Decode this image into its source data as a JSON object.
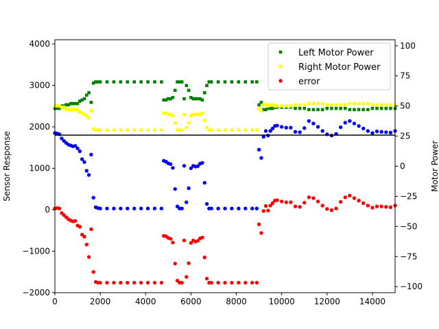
{
  "chart_data": {
    "type": "scatter",
    "title": "",
    "xlabel": "",
    "ylabel_left": "Sensor Response",
    "ylabel_right": "Motor Power",
    "xlim": [
      0,
      15000
    ],
    "ylim_left": [
      -2000,
      4100
    ],
    "ylim_right": [
      -105,
      105
    ],
    "x_ticks": [
      0,
      2000,
      4000,
      6000,
      8000,
      10000,
      12000,
      14000
    ],
    "y_ticks_left": [
      -2000,
      -1000,
      0,
      1000,
      2000,
      3000,
      4000
    ],
    "y_ticks_right": [
      -100,
      -75,
      -50,
      -25,
      0,
      25,
      50,
      75,
      100
    ],
    "reference_line": {
      "axis": "left",
      "y": 1800,
      "color": "#000000"
    },
    "grid": false,
    "legend_position": "top-right",
    "legend": [
      {
        "label": "Left Motor Power",
        "color": "#008000",
        "marker": "square"
      },
      {
        "label": "Right Motor Power",
        "color": "#ffff00",
        "marker": "square"
      },
      {
        "label": "error",
        "color": "#ff0000",
        "marker": "circle"
      }
    ],
    "series": [
      {
        "name": "",
        "axis": "left",
        "color": "#0000ff",
        "marker": "circle",
        "x": [
          0,
          100,
          200,
          300,
          400,
          500,
          600,
          700,
          800,
          900,
          1000,
          1100,
          1200,
          1300,
          1400,
          1500,
          1600,
          1700,
          1800,
          1900,
          2000,
          2300,
          2600,
          2900,
          3200,
          3500,
          3800,
          4100,
          4400,
          4700,
          4800,
          4900,
          5000,
          5100,
          5200,
          5300,
          5400,
          5500,
          5600,
          5700,
          5800,
          5900,
          6000,
          6100,
          6200,
          6300,
          6400,
          6500,
          6600,
          6700,
          6800,
          6900,
          7200,
          7500,
          7800,
          8100,
          8400,
          8700,
          8900,
          9000,
          9100,
          9200,
          9300,
          9400,
          9500,
          9600,
          9700,
          9800,
          10000,
          10200,
          10400,
          10600,
          10800,
          11000,
          11200,
          11400,
          11600,
          11800,
          12000,
          12200,
          12400,
          12600,
          12800,
          13000,
          13200,
          13400,
          13600,
          13800,
          14000,
          14200,
          14400,
          14600,
          14800,
          15000
        ],
        "y": [
          1850,
          1840,
          1820,
          1720,
          1660,
          1610,
          1570,
          1550,
          1530,
          1540,
          1480,
          1410,
          1220,
          1150,
          940,
          840,
          1330,
          290,
          60,
          40,
          30,
          30,
          30,
          30,
          30,
          30,
          30,
          30,
          30,
          30,
          1180,
          1160,
          1120,
          1100,
          1010,
          500,
          80,
          30,
          30,
          1060,
          180,
          520,
          1000,
          1060,
          1040,
          1050,
          1110,
          1130,
          650,
          140,
          30,
          30,
          30,
          30,
          30,
          30,
          30,
          30,
          30,
          1450,
          1250,
          1760,
          1900,
          1790,
          1900,
          1960,
          2020,
          2030,
          2000,
          1980,
          1980,
          1880,
          1870,
          1970,
          2140,
          2080,
          2000,
          1900,
          1820,
          1790,
          1830,
          1990,
          2100,
          2140,
          2080,
          2020,
          1960,
          1900,
          1850,
          1890,
          1880,
          1870,
          1860,
          1900
        ]
      },
      {
        "name": "error",
        "axis": "left",
        "color": "#ff0000",
        "marker": "circle",
        "x": [
          0,
          100,
          200,
          300,
          400,
          500,
          600,
          700,
          800,
          900,
          1000,
          1100,
          1200,
          1300,
          1400,
          1500,
          1600,
          1700,
          1800,
          1900,
          2000,
          2300,
          2600,
          2900,
          3200,
          3500,
          3800,
          4100,
          4400,
          4700,
          4800,
          4900,
          5000,
          5100,
          5200,
          5300,
          5400,
          5500,
          5600,
          5700,
          5800,
          5900,
          6000,
          6100,
          6200,
          6300,
          6400,
          6500,
          6600,
          6700,
          6800,
          6900,
          7200,
          7500,
          7800,
          8100,
          8400,
          8700,
          8900,
          9000,
          9100,
          9200,
          9300,
          9400,
          9500,
          9600,
          9700,
          9800,
          10000,
          10200,
          10400,
          10600,
          10800,
          11000,
          11200,
          11400,
          11600,
          11800,
          12000,
          12200,
          12400,
          12600,
          12800,
          13000,
          13200,
          13400,
          13600,
          13800,
          14000,
          14200,
          14400,
          14600,
          14800,
          15000
        ],
        "y": [
          30,
          40,
          30,
          -80,
          -130,
          -180,
          -230,
          -260,
          -280,
          -270,
          -380,
          -410,
          -600,
          -650,
          -840,
          -1140,
          -470,
          -1500,
          -1740,
          -1760,
          -1760,
          -1760,
          -1760,
          -1760,
          -1760,
          -1760,
          -1760,
          -1760,
          -1760,
          -1760,
          -630,
          -640,
          -680,
          -700,
          -790,
          -1300,
          -1710,
          -1760,
          -1760,
          -740,
          -1620,
          -1290,
          -800,
          -740,
          -770,
          -750,
          -690,
          -670,
          -1150,
          -1660,
          -1760,
          -1760,
          -1760,
          -1760,
          -1760,
          -1760,
          -1760,
          -1760,
          -1760,
          -350,
          -560,
          -30,
          90,
          -20,
          100,
          160,
          220,
          230,
          200,
          180,
          180,
          80,
          70,
          170,
          300,
          280,
          200,
          100,
          20,
          -10,
          30,
          190,
          300,
          340,
          280,
          220,
          160,
          100,
          50,
          80,
          80,
          70,
          60,
          100
        ]
      },
      {
        "name": "Left Motor Power",
        "axis": "right",
        "color": "#008000",
        "marker": "square",
        "x": [
          0,
          100,
          200,
          300,
          400,
          500,
          600,
          700,
          800,
          900,
          1000,
          1100,
          1200,
          1300,
          1400,
          1500,
          1600,
          1700,
          1800,
          1900,
          2000,
          2300,
          2600,
          2900,
          3200,
          3500,
          3800,
          4100,
          4400,
          4700,
          4800,
          4900,
          5000,
          5100,
          5200,
          5300,
          5400,
          5500,
          5600,
          5700,
          5800,
          5900,
          6000,
          6100,
          6200,
          6300,
          6400,
          6500,
          6600,
          6700,
          6800,
          6900,
          7200,
          7500,
          7800,
          8100,
          8400,
          8700,
          8900,
          9000,
          9100,
          9200,
          9300,
          9400,
          9500,
          9600,
          9700,
          9800,
          10000,
          10200,
          10400,
          10600,
          10800,
          11000,
          11200,
          11400,
          11600,
          11800,
          12000,
          12200,
          12400,
          12600,
          12800,
          13000,
          13200,
          13400,
          13600,
          13800,
          14000,
          14200,
          14400,
          14600,
          14800,
          15000
        ],
        "y": [
          48,
          48,
          48,
          50,
          50,
          51,
          51,
          52,
          52,
          52,
          52,
          54,
          55,
          56,
          59,
          61,
          53,
          69,
          70,
          70,
          70,
          70,
          70,
          70,
          70,
          70,
          70,
          70,
          70,
          70,
          55,
          55,
          56,
          56,
          57,
          63,
          70,
          70,
          70,
          56,
          67,
          63,
          57,
          56,
          56,
          56,
          56,
          55,
          61,
          67,
          70,
          70,
          70,
          70,
          70,
          70,
          70,
          70,
          70,
          51,
          53,
          47,
          47,
          48,
          48,
          48,
          49,
          49,
          49,
          49,
          49,
          48,
          48,
          48,
          47,
          47,
          47,
          47,
          48,
          48,
          48,
          48,
          48,
          47,
          47,
          47,
          47,
          47,
          48,
          48,
          48,
          48,
          48,
          48
        ]
      },
      {
        "name": "Right Motor Power",
        "axis": "right",
        "color": "#ffff00",
        "marker": "square",
        "x": [
          0,
          100,
          200,
          300,
          400,
          500,
          600,
          700,
          800,
          900,
          1000,
          1100,
          1200,
          1300,
          1400,
          1500,
          1600,
          1700,
          1800,
          1900,
          2000,
          2300,
          2600,
          2900,
          3200,
          3500,
          3800,
          4100,
          4400,
          4700,
          4800,
          4900,
          5000,
          5100,
          5200,
          5300,
          5400,
          5500,
          5600,
          5700,
          5800,
          5900,
          6000,
          6100,
          6200,
          6300,
          6400,
          6500,
          6600,
          6700,
          6800,
          6900,
          7200,
          7500,
          7800,
          8100,
          8400,
          8700,
          8900,
          9000,
          9100,
          9200,
          9300,
          9400,
          9500,
          9600,
          9700,
          9800,
          10000,
          10200,
          10400,
          10600,
          10800,
          11000,
          11200,
          11400,
          11600,
          11800,
          12000,
          12200,
          12400,
          12600,
          12800,
          13000,
          13200,
          13400,
          13600,
          13800,
          14000,
          14200,
          14400,
          14600,
          14800,
          15000
        ],
        "y": [
          50,
          50,
          50,
          49,
          49,
          47,
          47,
          47,
          47,
          47,
          47,
          45,
          44,
          43,
          42,
          40,
          46,
          31,
          30,
          30,
          30,
          30,
          30,
          30,
          30,
          30,
          30,
          30,
          30,
          30,
          44,
          44,
          43,
          43,
          42,
          36,
          30,
          30,
          30,
          43,
          32,
          36,
          42,
          43,
          43,
          43,
          43,
          44,
          38,
          32,
          30,
          30,
          30,
          30,
          30,
          30,
          30,
          30,
          30,
          48,
          46,
          51,
          51,
          50,
          51,
          51,
          50,
          50,
          50,
          50,
          50,
          51,
          51,
          51,
          52,
          52,
          52,
          52,
          51,
          51,
          51,
          51,
          51,
          52,
          52,
          52,
          52,
          52,
          51,
          51,
          51,
          51,
          51,
          51
        ]
      }
    ]
  }
}
